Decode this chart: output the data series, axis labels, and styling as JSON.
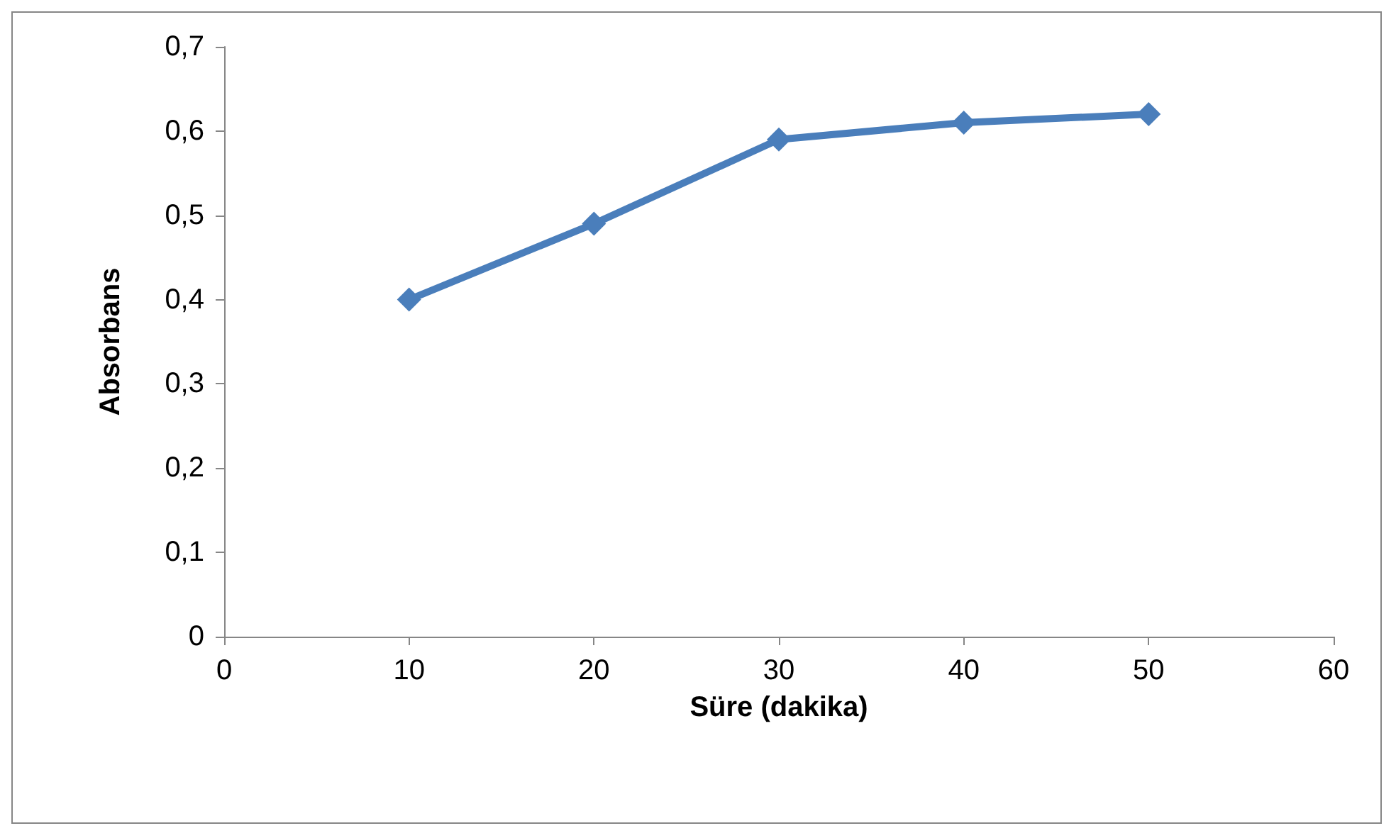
{
  "chart_data": {
    "type": "line",
    "xlabel": "Süre (dakika)",
    "ylabel": "Absorbans",
    "x": [
      10,
      20,
      30,
      40,
      50
    ],
    "series": [
      {
        "color": "#4a7ebb",
        "values": [
          0.4,
          0.49,
          0.59,
          0.61,
          0.62
        ]
      }
    ],
    "xlim": [
      0,
      60
    ],
    "xticks": [
      0,
      10,
      20,
      30,
      40,
      50,
      60
    ],
    "ylim": [
      0,
      0.7
    ],
    "yticks": [
      0,
      {
        "value": 0.1,
        "label": "0,1"
      },
      {
        "value": 0.2,
        "label": "0,2"
      },
      {
        "value": 0.3,
        "label": "0,3"
      },
      {
        "value": 0.4,
        "label": "0,4"
      },
      {
        "value": 0.5,
        "label": "0,5"
      },
      {
        "value": 0.6,
        "label": "0,6"
      },
      {
        "value": 0.7,
        "label": "0,7"
      }
    ],
    "grid": false,
    "marker": "diamond",
    "line_style": "solid"
  }
}
